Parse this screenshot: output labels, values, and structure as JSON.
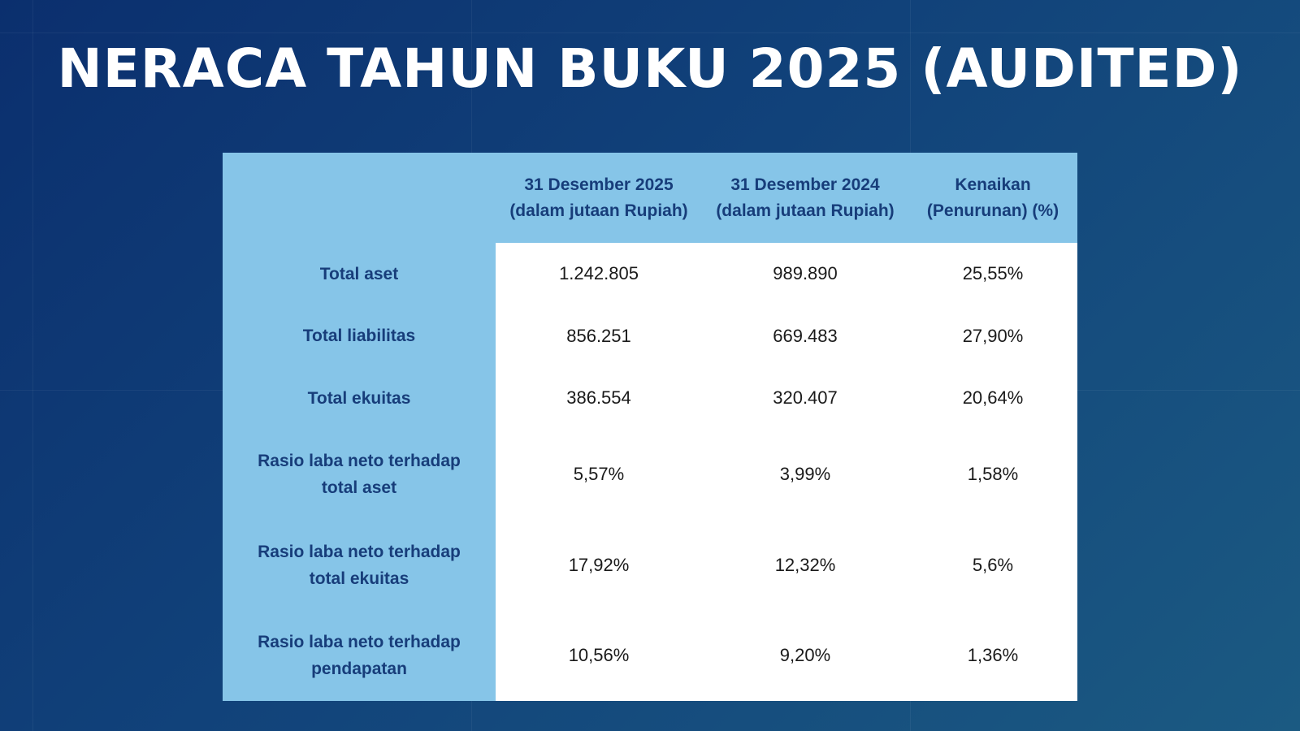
{
  "title": "NERACA TAHUN BUKU 2025 (AUDITED)",
  "table": {
    "headers": [
      "",
      "31 Desember 2025",
      "(dalam jutaan Rupiah)",
      "31 Desember 2024",
      "(dalam jutaan Rupiah)",
      "Kenaikan",
      "(Penurunan) (%)"
    ],
    "rows": [
      {
        "label": "Total aset",
        "y2025": "1.242.805",
        "y2024": "989.890",
        "change": "25,55%"
      },
      {
        "label": "Total liabilitas",
        "y2025": "856.251",
        "y2024": "669.483",
        "change": "27,90%"
      },
      {
        "label": "Total ekuitas",
        "y2025": "386.554",
        "y2024": "320.407",
        "change": "20,64%"
      },
      {
        "label": "Rasio laba neto terhadap total aset",
        "y2025": "5,57%",
        "y2024": "3,99%",
        "change": "1,58%"
      },
      {
        "label": "Rasio laba neto terhadap total ekuitas",
        "y2025": "17,92%",
        "y2024": "12,32%",
        "change": "5,6%"
      },
      {
        "label": "Rasio laba neto terhadap pendapatan",
        "y2025": "10,56%",
        "y2024": "9,20%",
        "change": "1,36%"
      }
    ]
  },
  "colors": {
    "background_start": "#0b2f6e",
    "background_end": "#1b5a82",
    "header_fill": "#86c5e8",
    "header_text": "#173d7a",
    "cell_fill": "#ffffff",
    "cell_text": "#1a1a1a",
    "title_text": "#ffffff"
  }
}
